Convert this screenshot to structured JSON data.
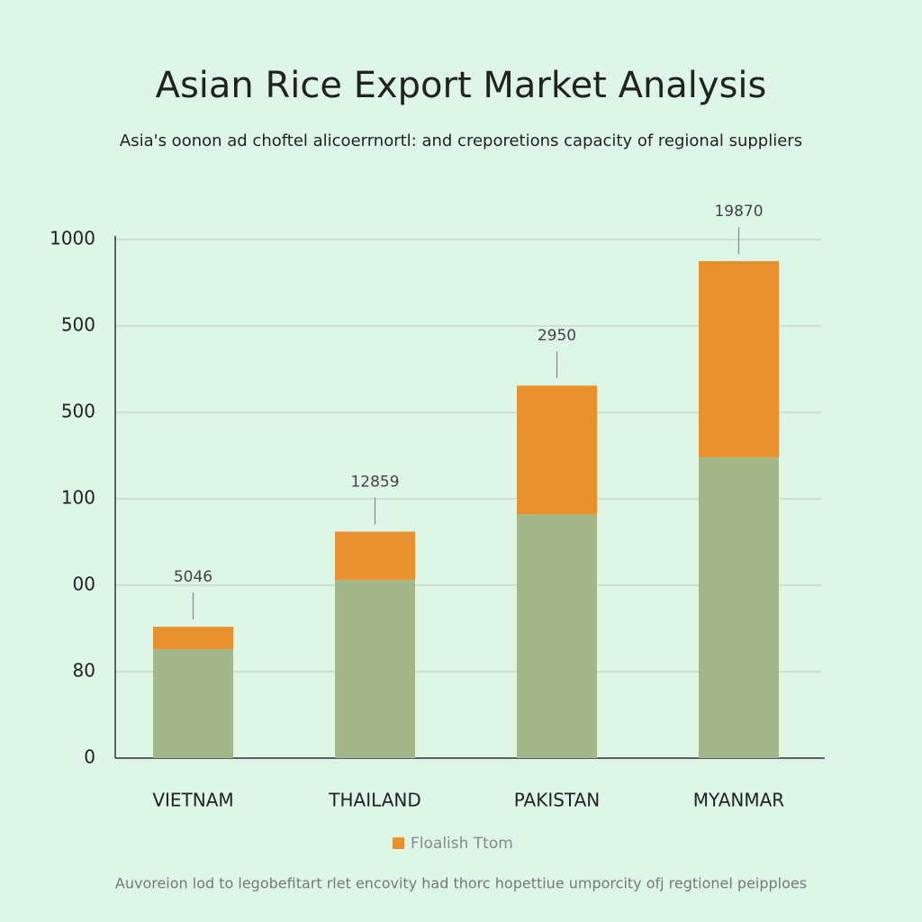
{
  "chart_data": {
    "type": "stacked_bar",
    "title": "Asian Rice Export Market Analysis",
    "subtitle": "Asia's oonon ad choftel alicoerrnortl: and creporetions capacity of regional suppliers",
    "categories": [
      "VIETNAM",
      "THAILAND",
      "PAKISTAN",
      "MYANMAR"
    ],
    "series": [
      {
        "name": null,
        "color": "#a3b78b",
        "values": [
          126,
          206,
          282,
          348
        ]
      },
      {
        "name": "Floalish Ttom",
        "color": "#e8912e",
        "values": [
          26,
          56,
          149,
          227
        ]
      }
    ],
    "annotations": [
      "5046",
      "12859",
      "2950",
      "19870"
    ],
    "ylim": [
      0,
      600
    ],
    "yticks": [
      0,
      {
        "value": 100,
        "label": "80"
      },
      {
        "value": 200,
        "label": "00"
      },
      {
        "value": 300,
        "label": "100"
      },
      {
        "value": 400,
        "label": "500"
      },
      {
        "value": 500,
        "label": "500"
      },
      {
        "value": 600,
        "label": "1000"
      }
    ],
    "grid": true,
    "legend": "bottom",
    "footnote": "Auvoreion lod to legobefitart rlet encovity had thorc hopettiue umporcity ofj regtionel peipploes"
  }
}
